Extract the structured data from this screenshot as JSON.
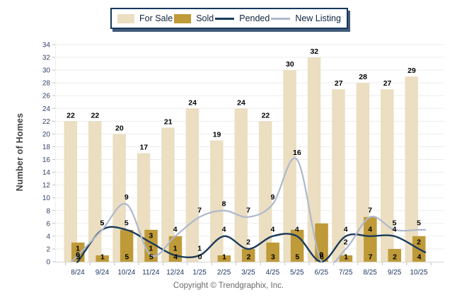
{
  "footer": {
    "copyright": "Copyright © Trendgraphix, Inc."
  },
  "colors": {
    "background": "#FFFFFF",
    "grid": "#EDEDED",
    "baseline": "#D6D6D6",
    "tick": "#BFBFBF",
    "axis_text": "#31456A",
    "x_axis_text": "#1F3864",
    "data_label": "#000000",
    "for_sale": "#EBDEC1",
    "sold": "#BE9A38",
    "pended": "#1C3A5A",
    "new_listing": "#AFB8CC"
  },
  "chart_data": {
    "type": "bar+line",
    "title": "",
    "xlabel": "",
    "ylabel": "Number of Homes",
    "ylim": [
      0,
      34
    ],
    "ytick_step": 2,
    "grid": true,
    "legend_position": "top",
    "categories": [
      "8/24",
      "9/24",
      "10/24",
      "11/24",
      "12/24",
      "1/25",
      "2/25",
      "3/25",
      "4/25",
      "5/25",
      "6/25",
      "7/25",
      "8/25",
      "9/25",
      "10/25"
    ],
    "series": [
      {
        "name": "For Sale",
        "type": "bar",
        "color": "#EBDEC1",
        "values": [
          22,
          22,
          20,
          17,
          21,
          24,
          19,
          24,
          22,
          30,
          32,
          27,
          28,
          27,
          29
        ]
      },
      {
        "name": "Sold",
        "type": "bar",
        "color": "#BE9A38",
        "values": [
          3,
          1,
          5,
          5,
          4,
          0,
          1,
          2,
          3,
          5,
          6,
          1,
          7,
          2,
          4
        ]
      },
      {
        "name": "Pended",
        "type": "line",
        "color": "#1C3A5A",
        "values": [
          0,
          5,
          5,
          3,
          1,
          1,
          4,
          2,
          4,
          4,
          0,
          4,
          4,
          4,
          2
        ]
      },
      {
        "name": "New Listing",
        "type": "line",
        "color": "#AFB8CC",
        "values": [
          1,
          5,
          9,
          1,
          4,
          7,
          8,
          7,
          9,
          16,
          0,
          2,
          7,
          5,
          5
        ]
      }
    ]
  }
}
